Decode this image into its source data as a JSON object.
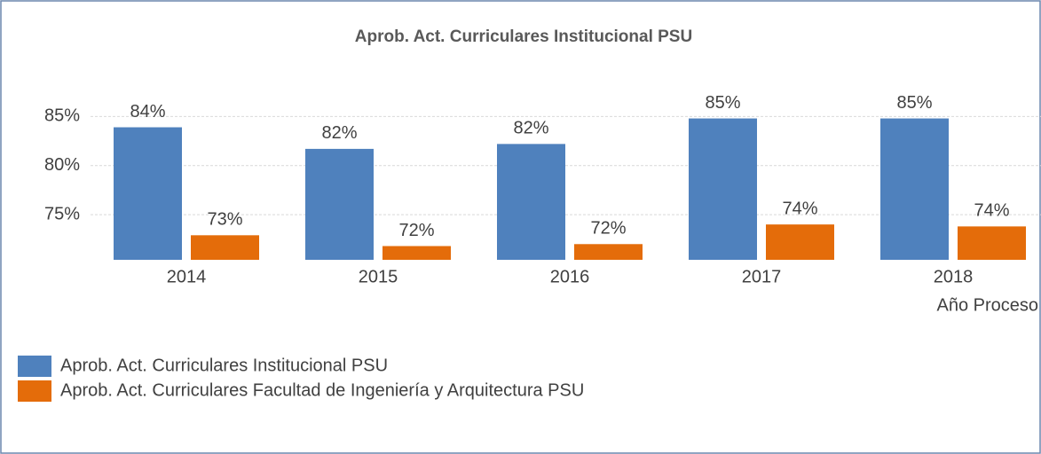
{
  "chart_data": {
    "type": "bar",
    "title": "Aprob. Act. Curriculares Institucional PSU",
    "x_label": "Año Proceso",
    "categories": [
      "2014",
      "2015",
      "2016",
      "2017",
      "2018"
    ],
    "series": [
      {
        "name": "Aprob. Act. Curriculares Institucional PSU",
        "color": "#4f81bd",
        "values": [
          83.9,
          81.7,
          82.2,
          84.8,
          84.8
        ],
        "value_labels": [
          "84%",
          "82%",
          "82%",
          "85%",
          "85%"
        ]
      },
      {
        "name": "Aprob. Act. Curriculares Facultad de Ingeniería y Arquitectura PSU",
        "color": "#e46c0a",
        "values": [
          72.9,
          71.8,
          72.0,
          74.0,
          73.8
        ],
        "value_labels": [
          "73%",
          "72%",
          "72%",
          "74%",
          "74%"
        ]
      }
    ],
    "ylim": [
      70.4,
      87.2
    ],
    "yticks": [
      {
        "value": 75,
        "label": "75%"
      },
      {
        "value": 80,
        "label": "80%"
      },
      {
        "value": 85,
        "label": "85%"
      }
    ],
    "grid": true,
    "legend": "bottom-left"
  }
}
